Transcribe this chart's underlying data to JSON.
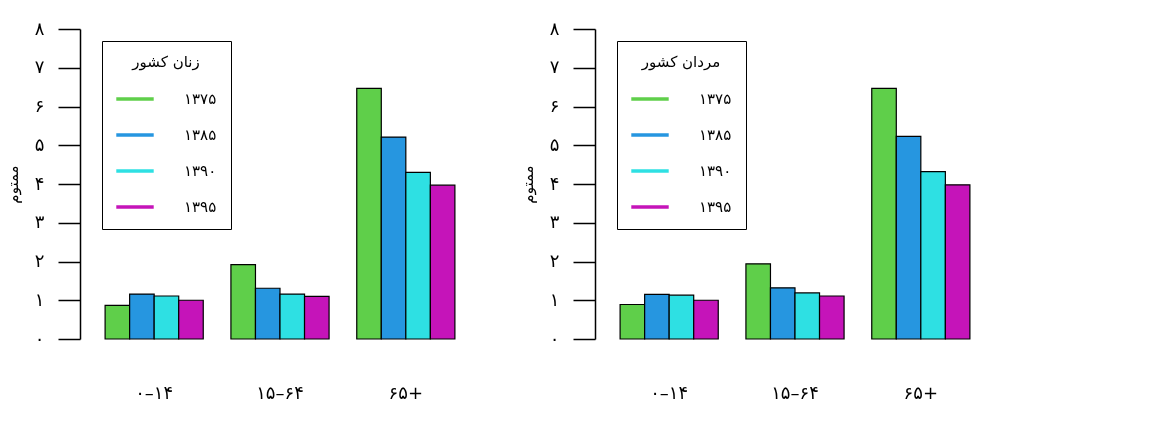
{
  "chart_data": [
    {
      "type": "bar",
      "ylabel": "ممتوم",
      "legend_title": "زنان کشور",
      "legend": "top left",
      "categories": [
        "۰–۱۴",
        "۱۵–۶۴",
        "۶۵+"
      ],
      "series": [
        {
          "name": "۱۳۷۵",
          "color": "#5fcf4a",
          "values": [
            0.87,
            1.92,
            6.47
          ]
        },
        {
          "name": "۱۳۸۵",
          "color": "#2696e0",
          "values": [
            1.16,
            1.31,
            5.21
          ]
        },
        {
          "name": "۱۳۹۰",
          "color": "#2ee0e3",
          "values": [
            1.11,
            1.16,
            4.3
          ]
        },
        {
          "name": "۱۳۹۵",
          "color": "#c514b9",
          "values": [
            1.0,
            1.1,
            3.97
          ]
        }
      ],
      "ylim": [
        0,
        8
      ],
      "yticks": [
        {
          "value": 0,
          "label": "۰"
        },
        {
          "value": 1,
          "label": "۱"
        },
        {
          "value": 2,
          "label": "۲"
        },
        {
          "value": 3,
          "label": "۳"
        },
        {
          "value": 4,
          "label": "۴"
        },
        {
          "value": 5,
          "label": "۵"
        },
        {
          "value": 6,
          "label": "۶"
        },
        {
          "value": 7,
          "label": "۷"
        },
        {
          "value": 8,
          "label": "۸"
        }
      ]
    },
    {
      "type": "bar",
      "ylabel": "ممتوم",
      "legend_title": "مردان کشور",
      "legend": "top left",
      "categories": [
        "۰–۱۴",
        "۱۵–۶۴",
        "۶۵+"
      ],
      "series": [
        {
          "name": "۱۳۷۵",
          "color": "#5fcf4a",
          "values": [
            0.89,
            1.94,
            6.47
          ]
        },
        {
          "name": "۱۳۸۵",
          "color": "#2696e0",
          "values": [
            1.15,
            1.32,
            5.23
          ]
        },
        {
          "name": "۱۳۹۰",
          "color": "#2ee0e3",
          "values": [
            1.13,
            1.19,
            4.32
          ]
        },
        {
          "name": "۱۳۹۵",
          "color": "#c514b9",
          "values": [
            1.0,
            1.11,
            3.98
          ]
        }
      ],
      "ylim": [
        0,
        8
      ],
      "yticks": [
        {
          "value": 0,
          "label": "۰"
        },
        {
          "value": 1,
          "label": "۱"
        },
        {
          "value": 2,
          "label": "۲"
        },
        {
          "value": 3,
          "label": "۳"
        },
        {
          "value": 4,
          "label": "۴"
        },
        {
          "value": 5,
          "label": "۵"
        },
        {
          "value": 6,
          "label": "۶"
        },
        {
          "value": 7,
          "label": "۷"
        },
        {
          "value": 8,
          "label": "۸"
        }
      ]
    }
  ]
}
